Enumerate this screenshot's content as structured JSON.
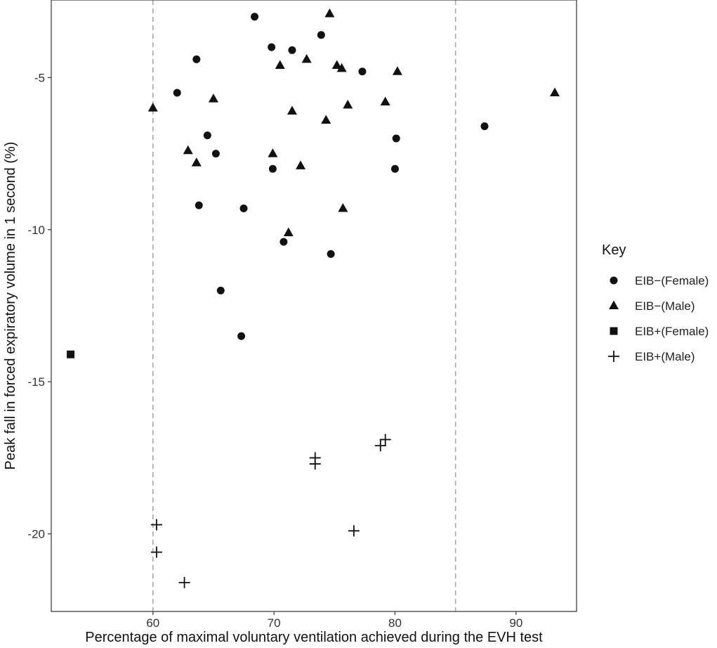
{
  "chart_data": {
    "type": "scatter",
    "title": "",
    "xlabel": "Percentage of maximal voluntary ventilation achieved during the EVH test",
    "ylabel": "Peak fall in forced expiratory volume in 1 second (%)",
    "xlim": [
      51.6,
      95.0
    ],
    "ylim": [
      -22.55,
      -2.45
    ],
    "x_ticks": [
      60,
      70,
      80,
      90
    ],
    "y_ticks": [
      -20,
      -15,
      -10,
      -5
    ],
    "x_tick_labels": [
      "60",
      "70",
      "80",
      "90"
    ],
    "y_tick_labels": [
      "-20",
      "-15",
      "-10",
      "-5"
    ],
    "grid": false,
    "reference_lines": [
      {
        "axis": "x",
        "value": 60,
        "style": "dashed"
      },
      {
        "axis": "x",
        "value": 85,
        "style": "dashed"
      }
    ],
    "legend": {
      "title": "Key",
      "placement": "right"
    },
    "series": [
      {
        "name": "EIB−(Female)",
        "marker": "circle",
        "points": [
          [
            68.4,
            -3.0
          ],
          [
            69.8,
            -4.0
          ],
          [
            71.5,
            -4.1
          ],
          [
            73.9,
            -3.6
          ],
          [
            63.6,
            -4.4
          ],
          [
            77.3,
            -4.8
          ],
          [
            62.0,
            -5.5
          ],
          [
            64.5,
            -6.9
          ],
          [
            65.2,
            -7.5
          ],
          [
            80.1,
            -7.0
          ],
          [
            69.9,
            -8.0
          ],
          [
            80.0,
            -8.0
          ],
          [
            63.8,
            -9.2
          ],
          [
            67.5,
            -9.3
          ],
          [
            70.8,
            -10.4
          ],
          [
            74.7,
            -10.8
          ],
          [
            65.6,
            -12.0
          ],
          [
            67.3,
            -13.5
          ],
          [
            87.4,
            -6.6
          ]
        ]
      },
      {
        "name": "EIB−(Male)",
        "marker": "triangle",
        "points": [
          [
            74.6,
            -2.9
          ],
          [
            70.5,
            -4.6
          ],
          [
            72.7,
            -4.4
          ],
          [
            75.2,
            -4.6
          ],
          [
            75.6,
            -4.7
          ],
          [
            80.2,
            -4.8
          ],
          [
            60.0,
            -6.0
          ],
          [
            65.0,
            -5.7
          ],
          [
            71.5,
            -6.1
          ],
          [
            74.3,
            -6.4
          ],
          [
            76.1,
            -5.9
          ],
          [
            79.2,
            -5.8
          ],
          [
            93.2,
            -5.5
          ],
          [
            62.9,
            -7.4
          ],
          [
            63.6,
            -7.8
          ],
          [
            69.9,
            -7.5
          ],
          [
            72.2,
            -7.9
          ],
          [
            75.7,
            -9.3
          ],
          [
            71.2,
            -10.1
          ]
        ]
      },
      {
        "name": "EIB+(Female)",
        "marker": "square",
        "points": [
          [
            53.2,
            -14.1
          ]
        ]
      },
      {
        "name": "EIB+(Male)",
        "marker": "cross",
        "points": [
          [
            73.4,
            -17.5
          ],
          [
            73.4,
            -17.7
          ],
          [
            78.8,
            -17.1
          ],
          [
            79.2,
            -16.9
          ],
          [
            76.6,
            -19.9
          ],
          [
            60.3,
            -19.7
          ],
          [
            60.3,
            -20.6
          ],
          [
            62.6,
            -21.6
          ]
        ]
      }
    ]
  }
}
